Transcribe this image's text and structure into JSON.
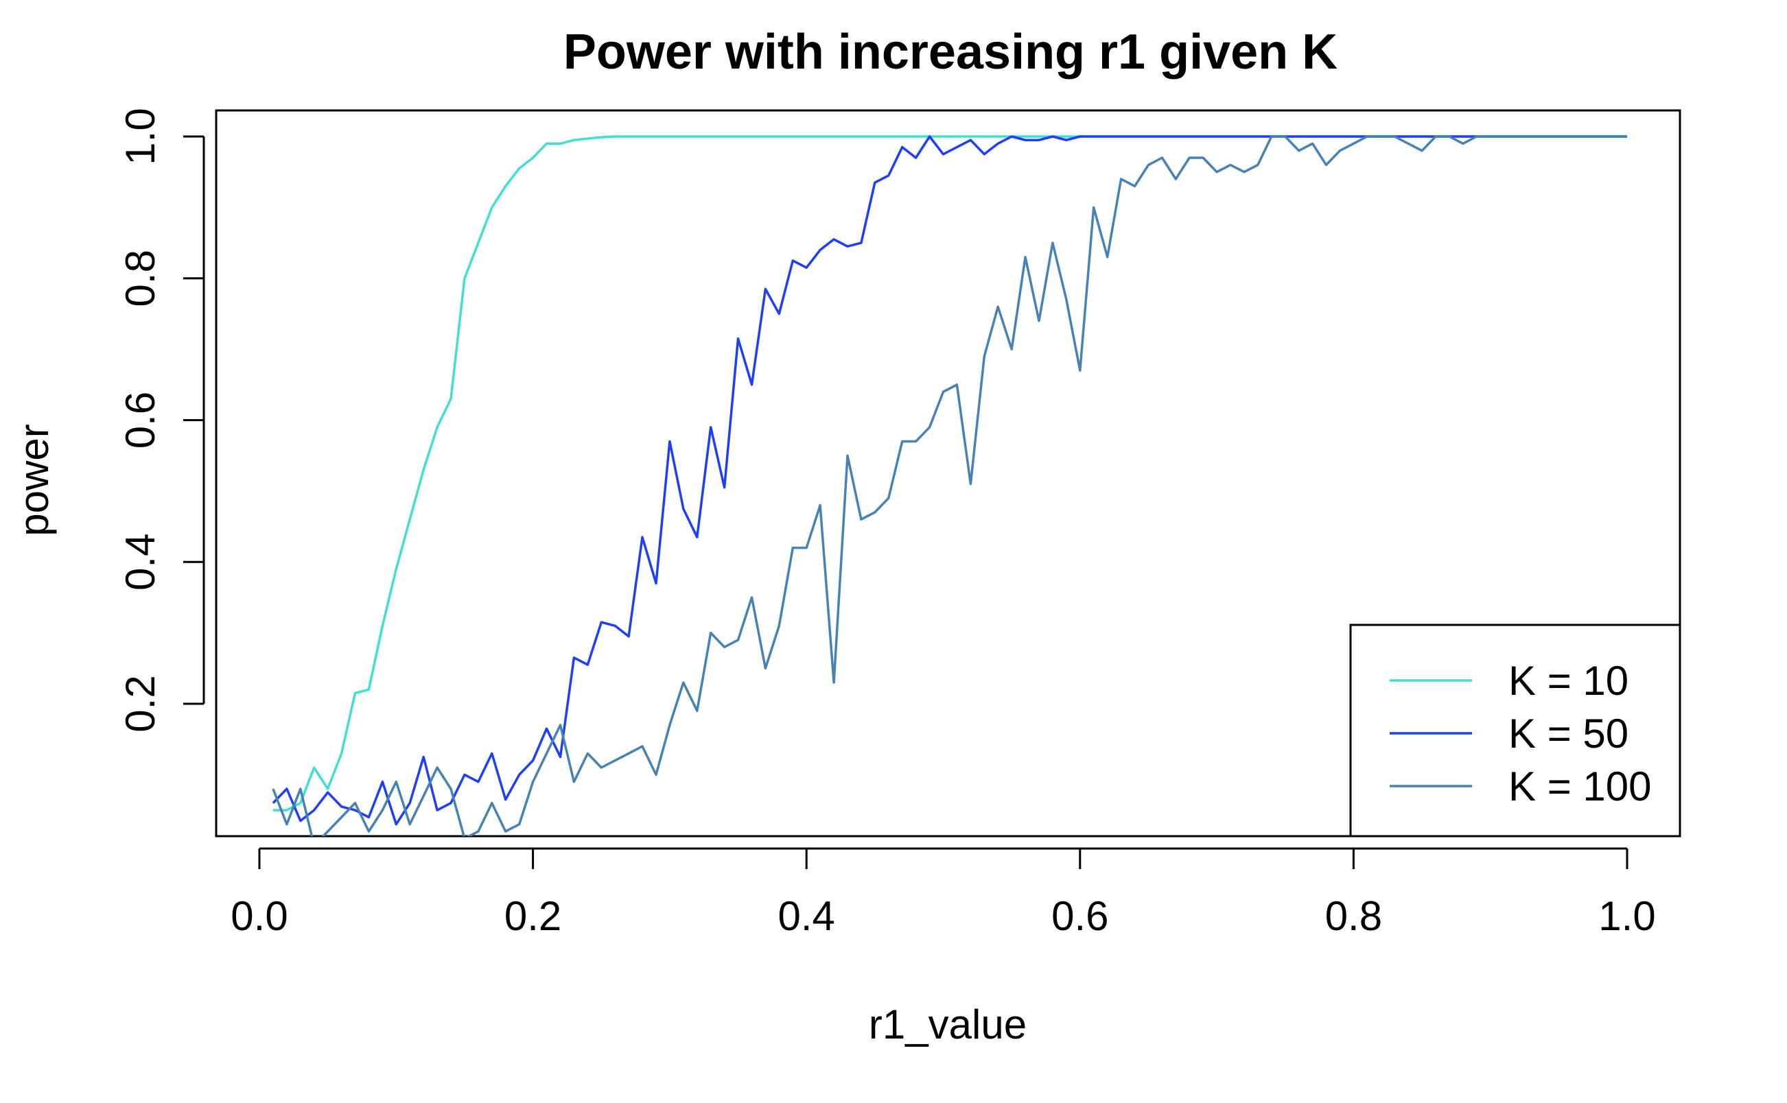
{
  "chart_data": {
    "type": "line",
    "title": "Power with increasing r1 given K",
    "xlabel": "r1_value",
    "ylabel": "power",
    "xlim": [
      0.0,
      1.0
    ],
    "ylim": [
      0.0,
      1.0
    ],
    "x_ticks": [
      "0.0",
      "0.2",
      "0.4",
      "0.6",
      "0.8",
      "1.0"
    ],
    "y_ticks": [
      "0.2",
      "0.4",
      "0.6",
      "0.8",
      "1.0"
    ],
    "grid": false,
    "legend_position": "bottom-right",
    "series": [
      {
        "name": "K = 10",
        "color": "#40E0D0",
        "x": [
          0.01,
          0.02,
          0.03,
          0.04,
          0.05,
          0.06,
          0.07,
          0.08,
          0.09,
          0.1,
          0.11,
          0.12,
          0.13,
          0.14,
          0.15,
          0.16,
          0.17,
          0.18,
          0.19,
          0.2,
          0.21,
          0.22,
          0.23,
          0.24,
          0.25,
          0.26,
          0.27,
          0.28,
          0.29,
          0.3,
          0.4,
          0.5,
          0.6,
          0.7,
          0.8,
          0.9,
          1.0
        ],
        "y": [
          0.05,
          0.05,
          0.06,
          0.11,
          0.08,
          0.13,
          0.215,
          0.22,
          0.31,
          0.39,
          0.46,
          0.53,
          0.59,
          0.63,
          0.8,
          0.85,
          0.9,
          0.93,
          0.955,
          0.97,
          0.99,
          0.99,
          0.995,
          0.997,
          0.999,
          1.0,
          1.0,
          1.0,
          1.0,
          1.0,
          1.0,
          1.0,
          1.0,
          1.0,
          1.0,
          1.0,
          1.0
        ]
      },
      {
        "name": "K = 50",
        "color": "#1E3EFF",
        "x": [
          0.01,
          0.02,
          0.03,
          0.04,
          0.05,
          0.06,
          0.07,
          0.08,
          0.09,
          0.1,
          0.11,
          0.12,
          0.13,
          0.14,
          0.15,
          0.16,
          0.17,
          0.18,
          0.19,
          0.2,
          0.21,
          0.22,
          0.23,
          0.24,
          0.25,
          0.26,
          0.27,
          0.28,
          0.29,
          0.3,
          0.31,
          0.32,
          0.33,
          0.34,
          0.35,
          0.36,
          0.37,
          0.38,
          0.39,
          0.4,
          0.41,
          0.42,
          0.43,
          0.44,
          0.45,
          0.46,
          0.47,
          0.48,
          0.49,
          0.5,
          0.51,
          0.52,
          0.53,
          0.54,
          0.55,
          0.56,
          0.57,
          0.58,
          0.59,
          0.6,
          0.7,
          0.8,
          0.9,
          1.0
        ],
        "y": [
          0.06,
          0.08,
          0.035,
          0.05,
          0.075,
          0.055,
          0.05,
          0.04,
          0.09,
          0.03,
          0.06,
          0.125,
          0.05,
          0.06,
          0.1,
          0.09,
          0.13,
          0.065,
          0.1,
          0.12,
          0.165,
          0.125,
          0.265,
          0.255,
          0.315,
          0.31,
          0.295,
          0.435,
          0.37,
          0.57,
          0.475,
          0.435,
          0.59,
          0.505,
          0.715,
          0.65,
          0.785,
          0.75,
          0.825,
          0.815,
          0.84,
          0.855,
          0.845,
          0.85,
          0.935,
          0.945,
          0.985,
          0.97,
          1.0,
          0.975,
          0.985,
          0.995,
          0.975,
          0.99,
          1.0,
          0.995,
          0.995,
          1.0,
          0.995,
          1.0,
          1.0,
          1.0,
          1.0,
          1.0
        ]
      },
      {
        "name": "K = 100",
        "color": "#4682B4",
        "x": [
          0.01,
          0.02,
          0.03,
          0.04,
          0.05,
          0.06,
          0.07,
          0.08,
          0.09,
          0.1,
          0.11,
          0.12,
          0.13,
          0.14,
          0.15,
          0.16,
          0.17,
          0.18,
          0.19,
          0.2,
          0.21,
          0.22,
          0.23,
          0.24,
          0.25,
          0.26,
          0.27,
          0.28,
          0.29,
          0.3,
          0.31,
          0.32,
          0.33,
          0.34,
          0.35,
          0.36,
          0.37,
          0.38,
          0.39,
          0.4,
          0.41,
          0.42,
          0.43,
          0.44,
          0.45,
          0.46,
          0.47,
          0.48,
          0.49,
          0.5,
          0.51,
          0.52,
          0.53,
          0.54,
          0.55,
          0.56,
          0.57,
          0.58,
          0.59,
          0.6,
          0.61,
          0.62,
          0.63,
          0.64,
          0.65,
          0.66,
          0.67,
          0.68,
          0.69,
          0.7,
          0.71,
          0.72,
          0.73,
          0.74,
          0.75,
          0.76,
          0.77,
          0.78,
          0.79,
          0.8,
          0.81,
          0.82,
          0.83,
          0.84,
          0.85,
          0.86,
          0.87,
          0.88,
          0.89,
          0.9,
          1.0
        ],
        "y": [
          0.08,
          0.03,
          0.08,
          0.0,
          0.02,
          0.04,
          0.06,
          0.02,
          0.05,
          0.09,
          0.03,
          0.07,
          0.11,
          0.08,
          0.01,
          0.02,
          0.06,
          0.02,
          0.03,
          0.09,
          0.13,
          0.17,
          0.09,
          0.13,
          0.11,
          0.12,
          0.13,
          0.14,
          0.1,
          0.17,
          0.23,
          0.19,
          0.3,
          0.28,
          0.29,
          0.35,
          0.25,
          0.31,
          0.42,
          0.42,
          0.48,
          0.23,
          0.55,
          0.46,
          0.47,
          0.49,
          0.57,
          0.57,
          0.59,
          0.64,
          0.65,
          0.51,
          0.69,
          0.76,
          0.7,
          0.83,
          0.74,
          0.85,
          0.77,
          0.67,
          0.9,
          0.83,
          0.94,
          0.93,
          0.96,
          0.97,
          0.94,
          0.97,
          0.97,
          0.95,
          0.96,
          0.95,
          0.96,
          1.0,
          1.0,
          0.98,
          0.99,
          0.96,
          0.98,
          0.99,
          1.0,
          1.0,
          1.0,
          0.99,
          0.98,
          1.0,
          1.0,
          0.99,
          1.0,
          1.0,
          1.0
        ]
      }
    ]
  }
}
